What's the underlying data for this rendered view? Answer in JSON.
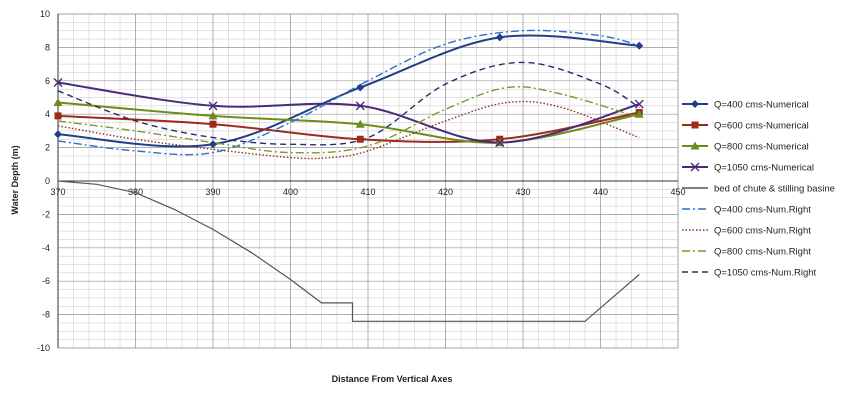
{
  "chart_data": {
    "type": "line",
    "xlabel": "Distance From Vertical Axes",
    "ylabel": "Water Depth (m)",
    "xlim": [
      370,
      450
    ],
    "ylim": [
      -10,
      10
    ],
    "x_ticks": [
      370,
      380,
      390,
      400,
      410,
      420,
      430,
      440,
      450
    ],
    "y_ticks": [
      -10,
      -8,
      -6,
      -4,
      -2,
      0,
      2,
      4,
      6,
      8,
      10
    ],
    "grid": true,
    "legend_position": "right",
    "series": [
      {
        "name": "Q=400 cms-Numerical",
        "color": "#1f3f8a",
        "style": "solid",
        "marker": "diamond",
        "x": [
          370,
          390,
          409,
          427,
          445
        ],
        "y": [
          2.8,
          2.2,
          5.6,
          8.6,
          8.1
        ]
      },
      {
        "name": "Q=600 cms-Numerical",
        "color": "#9e2a1c",
        "style": "solid",
        "marker": "square",
        "x": [
          370,
          390,
          409,
          427,
          445
        ],
        "y": [
          3.9,
          3.4,
          2.5,
          2.5,
          4.1
        ]
      },
      {
        "name": "Q=800 cms-Numerical",
        "color": "#6e8c1a",
        "style": "solid",
        "marker": "triangle",
        "x": [
          370,
          390,
          409,
          427,
          445
        ],
        "y": [
          4.7,
          3.9,
          3.4,
          2.3,
          4.0
        ]
      },
      {
        "name": "Q=1050 cms-Numerical",
        "color": "#4b2a7a",
        "style": "solid",
        "marker": "x",
        "x": [
          370,
          390,
          409,
          427,
          445
        ],
        "y": [
          5.9,
          4.5,
          4.5,
          2.3,
          4.6
        ]
      },
      {
        "name": "bed of chute & stilling basine",
        "color": "#555555",
        "style": "solid",
        "marker": "none",
        "x": [
          370,
          375,
          380,
          385,
          390,
          395,
          400,
          404,
          408,
          408,
          438,
          439,
          445
        ],
        "y": [
          0,
          -0.2,
          -0.7,
          -1.7,
          -2.9,
          -4.3,
          -5.9,
          -7.3,
          -7.3,
          -8.4,
          -8.4,
          -8.0,
          -5.6
        ]
      },
      {
        "name": "Q=400 cms-Num.Right",
        "color": "#2f6fc7",
        "style": "dashdot",
        "marker": "none",
        "x": [
          370,
          380,
          390,
          400,
          410,
          420,
          430,
          440,
          445
        ],
        "y": [
          2.4,
          1.8,
          1.7,
          3.5,
          6.0,
          8.2,
          9.0,
          8.7,
          8.1
        ]
      },
      {
        "name": "Q=600 cms-Num.Right",
        "color": "#8a3020",
        "style": "dotted",
        "marker": "none",
        "x": [
          370,
          380,
          390,
          400,
          405,
          410,
          420,
          428,
          435,
          445
        ],
        "y": [
          3.3,
          2.5,
          1.9,
          1.4,
          1.4,
          1.8,
          3.6,
          4.7,
          4.4,
          2.6
        ]
      },
      {
        "name": "Q=800 cms-Num.Right",
        "color": "#7a9a2a",
        "style": "dashdot",
        "marker": "none",
        "x": [
          370,
          380,
          390,
          400,
          410,
          420,
          428,
          435,
          445
        ],
        "y": [
          3.6,
          3.0,
          2.3,
          1.7,
          2.1,
          4.3,
          5.6,
          5.2,
          3.8
        ]
      },
      {
        "name": "Q=1050 cms-Num.Right",
        "color": "#2c2a6e",
        "style": "dashed",
        "marker": "none",
        "x": [
          370,
          380,
          390,
          400,
          410,
          420,
          430,
          440,
          445
        ],
        "y": [
          5.4,
          3.6,
          2.6,
          2.2,
          2.6,
          5.8,
          7.1,
          5.8,
          4.4
        ]
      }
    ]
  }
}
